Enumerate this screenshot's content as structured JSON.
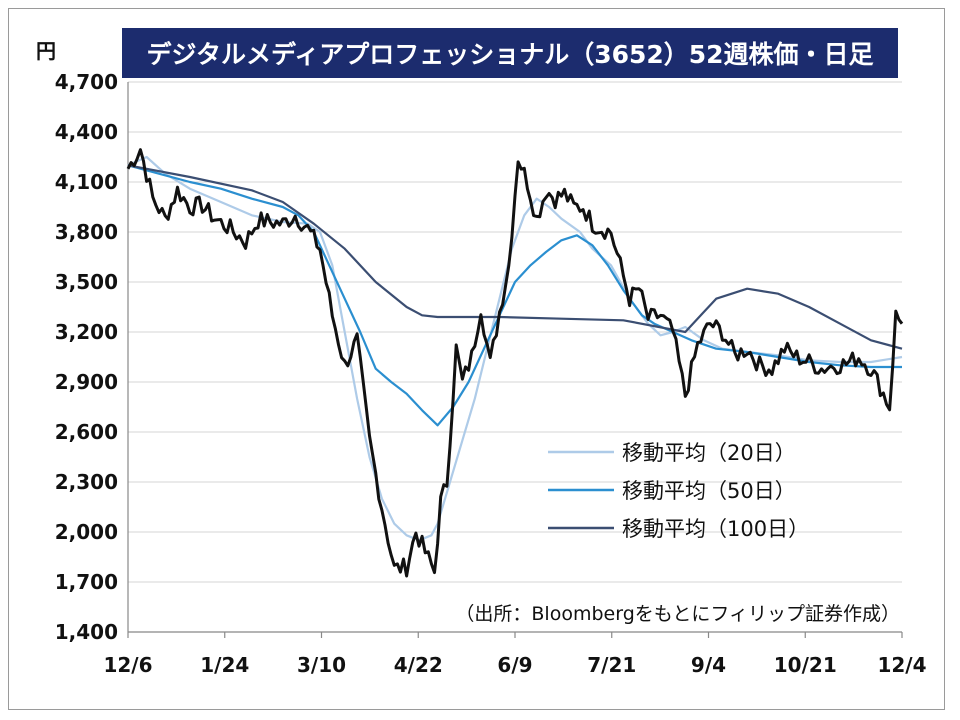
{
  "chart_data": {
    "type": "line",
    "title": "デジタルメディアプロフェッショナル（3652）52週株価・日足",
    "ylabel": "円",
    "ylim": [
      1400,
      4700
    ],
    "yticks": [
      1400,
      1700,
      2000,
      2300,
      2600,
      2900,
      3200,
      3500,
      3800,
      4100,
      4400,
      4700
    ],
    "ytick_labels": [
      "1,400",
      "1,700",
      "2,000",
      "2,300",
      "2,600",
      "2,900",
      "3,200",
      "3,500",
      "3,800",
      "4,100",
      "4,400",
      "4,700"
    ],
    "xtick_labels": [
      "12/6",
      "1/24",
      "3/10",
      "4/22",
      "6/9",
      "7/21",
      "9/4",
      "10/21",
      "12/4"
    ],
    "x_range": [
      0,
      250
    ],
    "grid": true,
    "legend_position": "bottom-right",
    "source_note": "（出所：Bloombergをもとにフィリップ証券作成）",
    "price_daily": {
      "name": "",
      "color": "#111111",
      "x": [
        0,
        4,
        8,
        12,
        16,
        20,
        24,
        28,
        33,
        38,
        42,
        46,
        50,
        54,
        58,
        62,
        66,
        70,
        74,
        78,
        82,
        86,
        90,
        93,
        96,
        99,
        101,
        103,
        106,
        108,
        111,
        114,
        117,
        120,
        123,
        126,
        129,
        132,
        135,
        138,
        141,
        144,
        147,
        150,
        153,
        156,
        159,
        162,
        165,
        168,
        172,
        176,
        180,
        184,
        188,
        192,
        196,
        200,
        204,
        208,
        212,
        216,
        220,
        224,
        228,
        232,
        236,
        240,
        243,
        246,
        248,
        250
      ],
      "y": [
        4180,
        4300,
        4000,
        3880,
        4050,
        3950,
        3960,
        3880,
        3820,
        3740,
        3870,
        3860,
        3850,
        3900,
        3820,
        3700,
        3300,
        3000,
        3150,
        2550,
        2150,
        1780,
        1790,
        2000,
        1880,
        1760,
        2180,
        2300,
        3100,
        2900,
        3050,
        3350,
        3010,
        3320,
        3600,
        4250,
        4100,
        3880,
        4050,
        4000,
        4030,
        3950,
        3950,
        3850,
        3820,
        3800,
        3600,
        3400,
        3460,
        3280,
        3300,
        3200,
        2820,
        3120,
        3250,
        3200,
        3060,
        3100,
        3000,
        2980,
        3100,
        3050,
        3020,
        2980,
        3000,
        3010,
        3050,
        2980,
        2870,
        2750,
        3300,
        3250
      ]
    },
    "series": [
      {
        "name": "移動平均（20日）",
        "color": "#aecbe8",
        "x": [
          0,
          6,
          12,
          20,
          30,
          40,
          50,
          58,
          62,
          66,
          70,
          74,
          78,
          82,
          86,
          90,
          94,
          98,
          100,
          104,
          108,
          112,
          116,
          120,
          124,
          128,
          132,
          136,
          140,
          146,
          150,
          156,
          162,
          168,
          172,
          176,
          180,
          186,
          192,
          200,
          210,
          220,
          230,
          240,
          250
        ],
        "y": [
          4200,
          4250,
          4150,
          4060,
          3980,
          3900,
          3860,
          3850,
          3800,
          3600,
          3200,
          2800,
          2450,
          2200,
          2050,
          1980,
          1950,
          1980,
          2050,
          2300,
          2550,
          2800,
          3100,
          3400,
          3700,
          3900,
          4000,
          3950,
          3880,
          3800,
          3700,
          3600,
          3400,
          3250,
          3180,
          3200,
          3230,
          3150,
          3100,
          3080,
          3060,
          3030,
          3020,
          3020,
          3050
        ]
      },
      {
        "name": "移動平均（50日）",
        "color": "#2b8fd0",
        "x": [
          0,
          10,
          20,
          30,
          40,
          50,
          55,
          60,
          65,
          70,
          75,
          80,
          85,
          90,
          95,
          100,
          105,
          110,
          115,
          120,
          125,
          130,
          135,
          140,
          145,
          150,
          155,
          160,
          166,
          170,
          176,
          182,
          190,
          200,
          210,
          220,
          230,
          240,
          250
        ],
        "y": [
          4200,
          4150,
          4100,
          4060,
          4000,
          3950,
          3900,
          3800,
          3600,
          3400,
          3200,
          2980,
          2900,
          2830,
          2730,
          2640,
          2750,
          2900,
          3100,
          3300,
          3500,
          3600,
          3680,
          3750,
          3780,
          3720,
          3600,
          3450,
          3300,
          3250,
          3200,
          3150,
          3100,
          3080,
          3050,
          3020,
          3000,
          2990,
          2990
        ]
      },
      {
        "name": "移動平均（100日）",
        "color": "#3b4e72",
        "x": [
          0,
          20,
          40,
          50,
          60,
          70,
          80,
          90,
          95,
          100,
          110,
          120,
          140,
          160,
          180,
          185,
          190,
          200,
          210,
          220,
          230,
          240,
          250
        ],
        "y": [
          4200,
          4130,
          4050,
          3980,
          3850,
          3700,
          3500,
          3350,
          3300,
          3290,
          3290,
          3290,
          3280,
          3270,
          3200,
          3300,
          3400,
          3460,
          3430,
          3350,
          3250,
          3150,
          3100
        ]
      }
    ]
  }
}
